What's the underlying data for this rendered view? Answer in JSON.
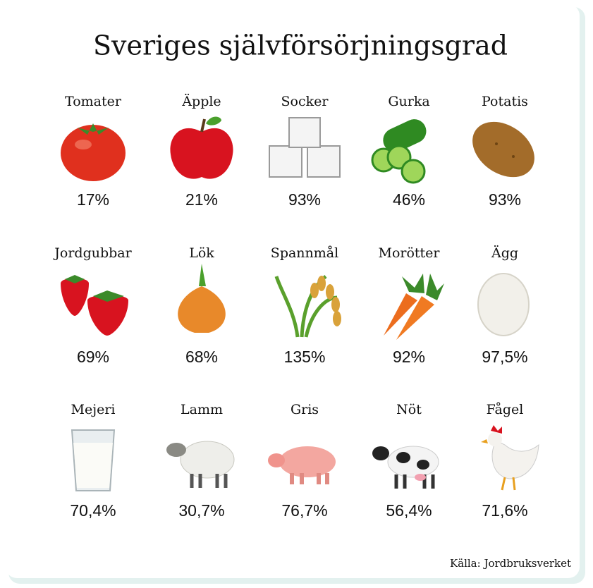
{
  "title": "Sveriges självförsörjningsgrad",
  "items": [
    {
      "label": "Tomater",
      "value": "17%"
    },
    {
      "label": "Äpple",
      "value": "21%"
    },
    {
      "label": "Socker",
      "value": "93%"
    },
    {
      "label": "Gurka",
      "value": "46%"
    },
    {
      "label": "Potatis",
      "value": "93%"
    },
    {
      "label": "Jordgubbar",
      "value": "69%"
    },
    {
      "label": "Lök",
      "value": "68%"
    },
    {
      "label": "Spannmål",
      "value": "135%"
    },
    {
      "label": "Morötter",
      "value": "92%"
    },
    {
      "label": "Ägg",
      "value": "97,5%"
    },
    {
      "label": "Mejeri",
      "value": "70,4%"
    },
    {
      "label": "Lamm",
      "value": "30,7%"
    },
    {
      "label": "Gris",
      "value": "76,7%"
    },
    {
      "label": "Nöt",
      "value": "56,4%"
    },
    {
      "label": "Fågel",
      "value": "71,6%"
    }
  ],
  "source": "Källa: Jordbruksverket"
}
